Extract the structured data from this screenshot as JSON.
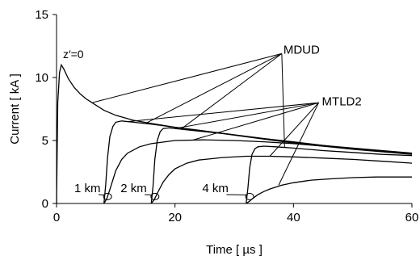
{
  "chart_data": {
    "type": "line",
    "xlabel": "Time [ µs ]",
    "ylabel": "Current [ kA ]",
    "xlim": [
      0,
      60
    ],
    "ylim": [
      0,
      15
    ],
    "xticks": [
      0,
      20,
      40,
      60
    ],
    "yticks": [
      0,
      5,
      10,
      15
    ],
    "grid": false,
    "line_color": "#000000",
    "curve_label": "z′=0",
    "series": [
      {
        "name": "MDUD",
        "x": [
          0,
          0.2,
          0.5,
          0.8,
          1.2,
          2,
          3,
          4,
          5,
          6,
          8,
          10,
          13,
          16,
          20,
          25,
          30,
          35,
          40,
          45,
          50,
          55,
          60
        ],
        "values": [
          0,
          8.0,
          10.4,
          11.0,
          10.7,
          9.9,
          9.2,
          8.7,
          8.3,
          8.0,
          7.4,
          7.0,
          6.6,
          6.35,
          6.05,
          5.75,
          5.45,
          5.15,
          4.9,
          4.6,
          4.4,
          4.2,
          4.0
        ]
      },
      {
        "name": "MDUD",
        "x": [
          8,
          8.3,
          8.6,
          9,
          9.5,
          10,
          11,
          13,
          16,
          20,
          25,
          30,
          35,
          40,
          45,
          50,
          55,
          60
        ],
        "values": [
          0,
          1.5,
          3.6,
          5.3,
          6.1,
          6.45,
          6.55,
          6.45,
          6.3,
          6.05,
          5.75,
          5.45,
          5.15,
          4.85,
          4.6,
          4.35,
          4.15,
          3.95
        ]
      },
      {
        "name": "MDUD",
        "x": [
          16,
          16.3,
          16.6,
          17,
          17.5,
          18,
          19,
          21,
          24,
          28,
          32,
          36,
          40,
          45,
          50,
          55,
          60
        ],
        "values": [
          0,
          1.4,
          3.5,
          5.0,
          5.7,
          5.95,
          6.0,
          5.9,
          5.75,
          5.55,
          5.3,
          5.05,
          4.8,
          4.55,
          4.3,
          4.1,
          3.9
        ]
      },
      {
        "name": "MDUD",
        "x": [
          32,
          32.3,
          32.6,
          33,
          33.5,
          34,
          35,
          37,
          40,
          45,
          50,
          55,
          60
        ],
        "values": [
          0,
          1.2,
          2.8,
          3.9,
          4.35,
          4.5,
          4.55,
          4.5,
          4.4,
          4.2,
          4.05,
          3.9,
          3.8
        ]
      },
      {
        "name": "MTLD2",
        "x": [
          8,
          8.5,
          9,
          10,
          11,
          12,
          14,
          16,
          20,
          25,
          30,
          35,
          40,
          45,
          50,
          55,
          60
        ],
        "values": [
          0,
          0.4,
          1.1,
          2.6,
          3.5,
          4.0,
          4.5,
          4.75,
          5.0,
          5.05,
          5.0,
          4.9,
          4.75,
          4.55,
          4.35,
          4.15,
          3.95
        ]
      },
      {
        "name": "MTLD2",
        "x": [
          16,
          16.5,
          17,
          18,
          19,
          20,
          22,
          24,
          28,
          32,
          36,
          40,
          45,
          50,
          55,
          60
        ],
        "values": [
          0,
          0.3,
          0.8,
          1.7,
          2.3,
          2.75,
          3.2,
          3.45,
          3.65,
          3.75,
          3.75,
          3.7,
          3.6,
          3.5,
          3.35,
          3.2
        ]
      },
      {
        "name": "MTLD2",
        "x": [
          32,
          32.5,
          33,
          34,
          35,
          36,
          38,
          40,
          43,
          46,
          50,
          54,
          57,
          60
        ],
        "values": [
          0,
          0.15,
          0.35,
          0.7,
          0.95,
          1.15,
          1.45,
          1.65,
          1.85,
          1.95,
          2.05,
          2.1,
          2.1,
          2.1
        ]
      }
    ],
    "annotations": [
      {
        "text": "MDUD",
        "x": 38.3,
        "y": 11.9
      },
      {
        "text": "MTLD2",
        "x": 44.8,
        "y": 7.8
      },
      {
        "text": "1 km",
        "x": 3.0,
        "y": 0.9
      },
      {
        "text": "2 km",
        "x": 10.8,
        "y": 0.9
      },
      {
        "text": "4 km",
        "x": 24.6,
        "y": 0.9
      }
    ]
  }
}
